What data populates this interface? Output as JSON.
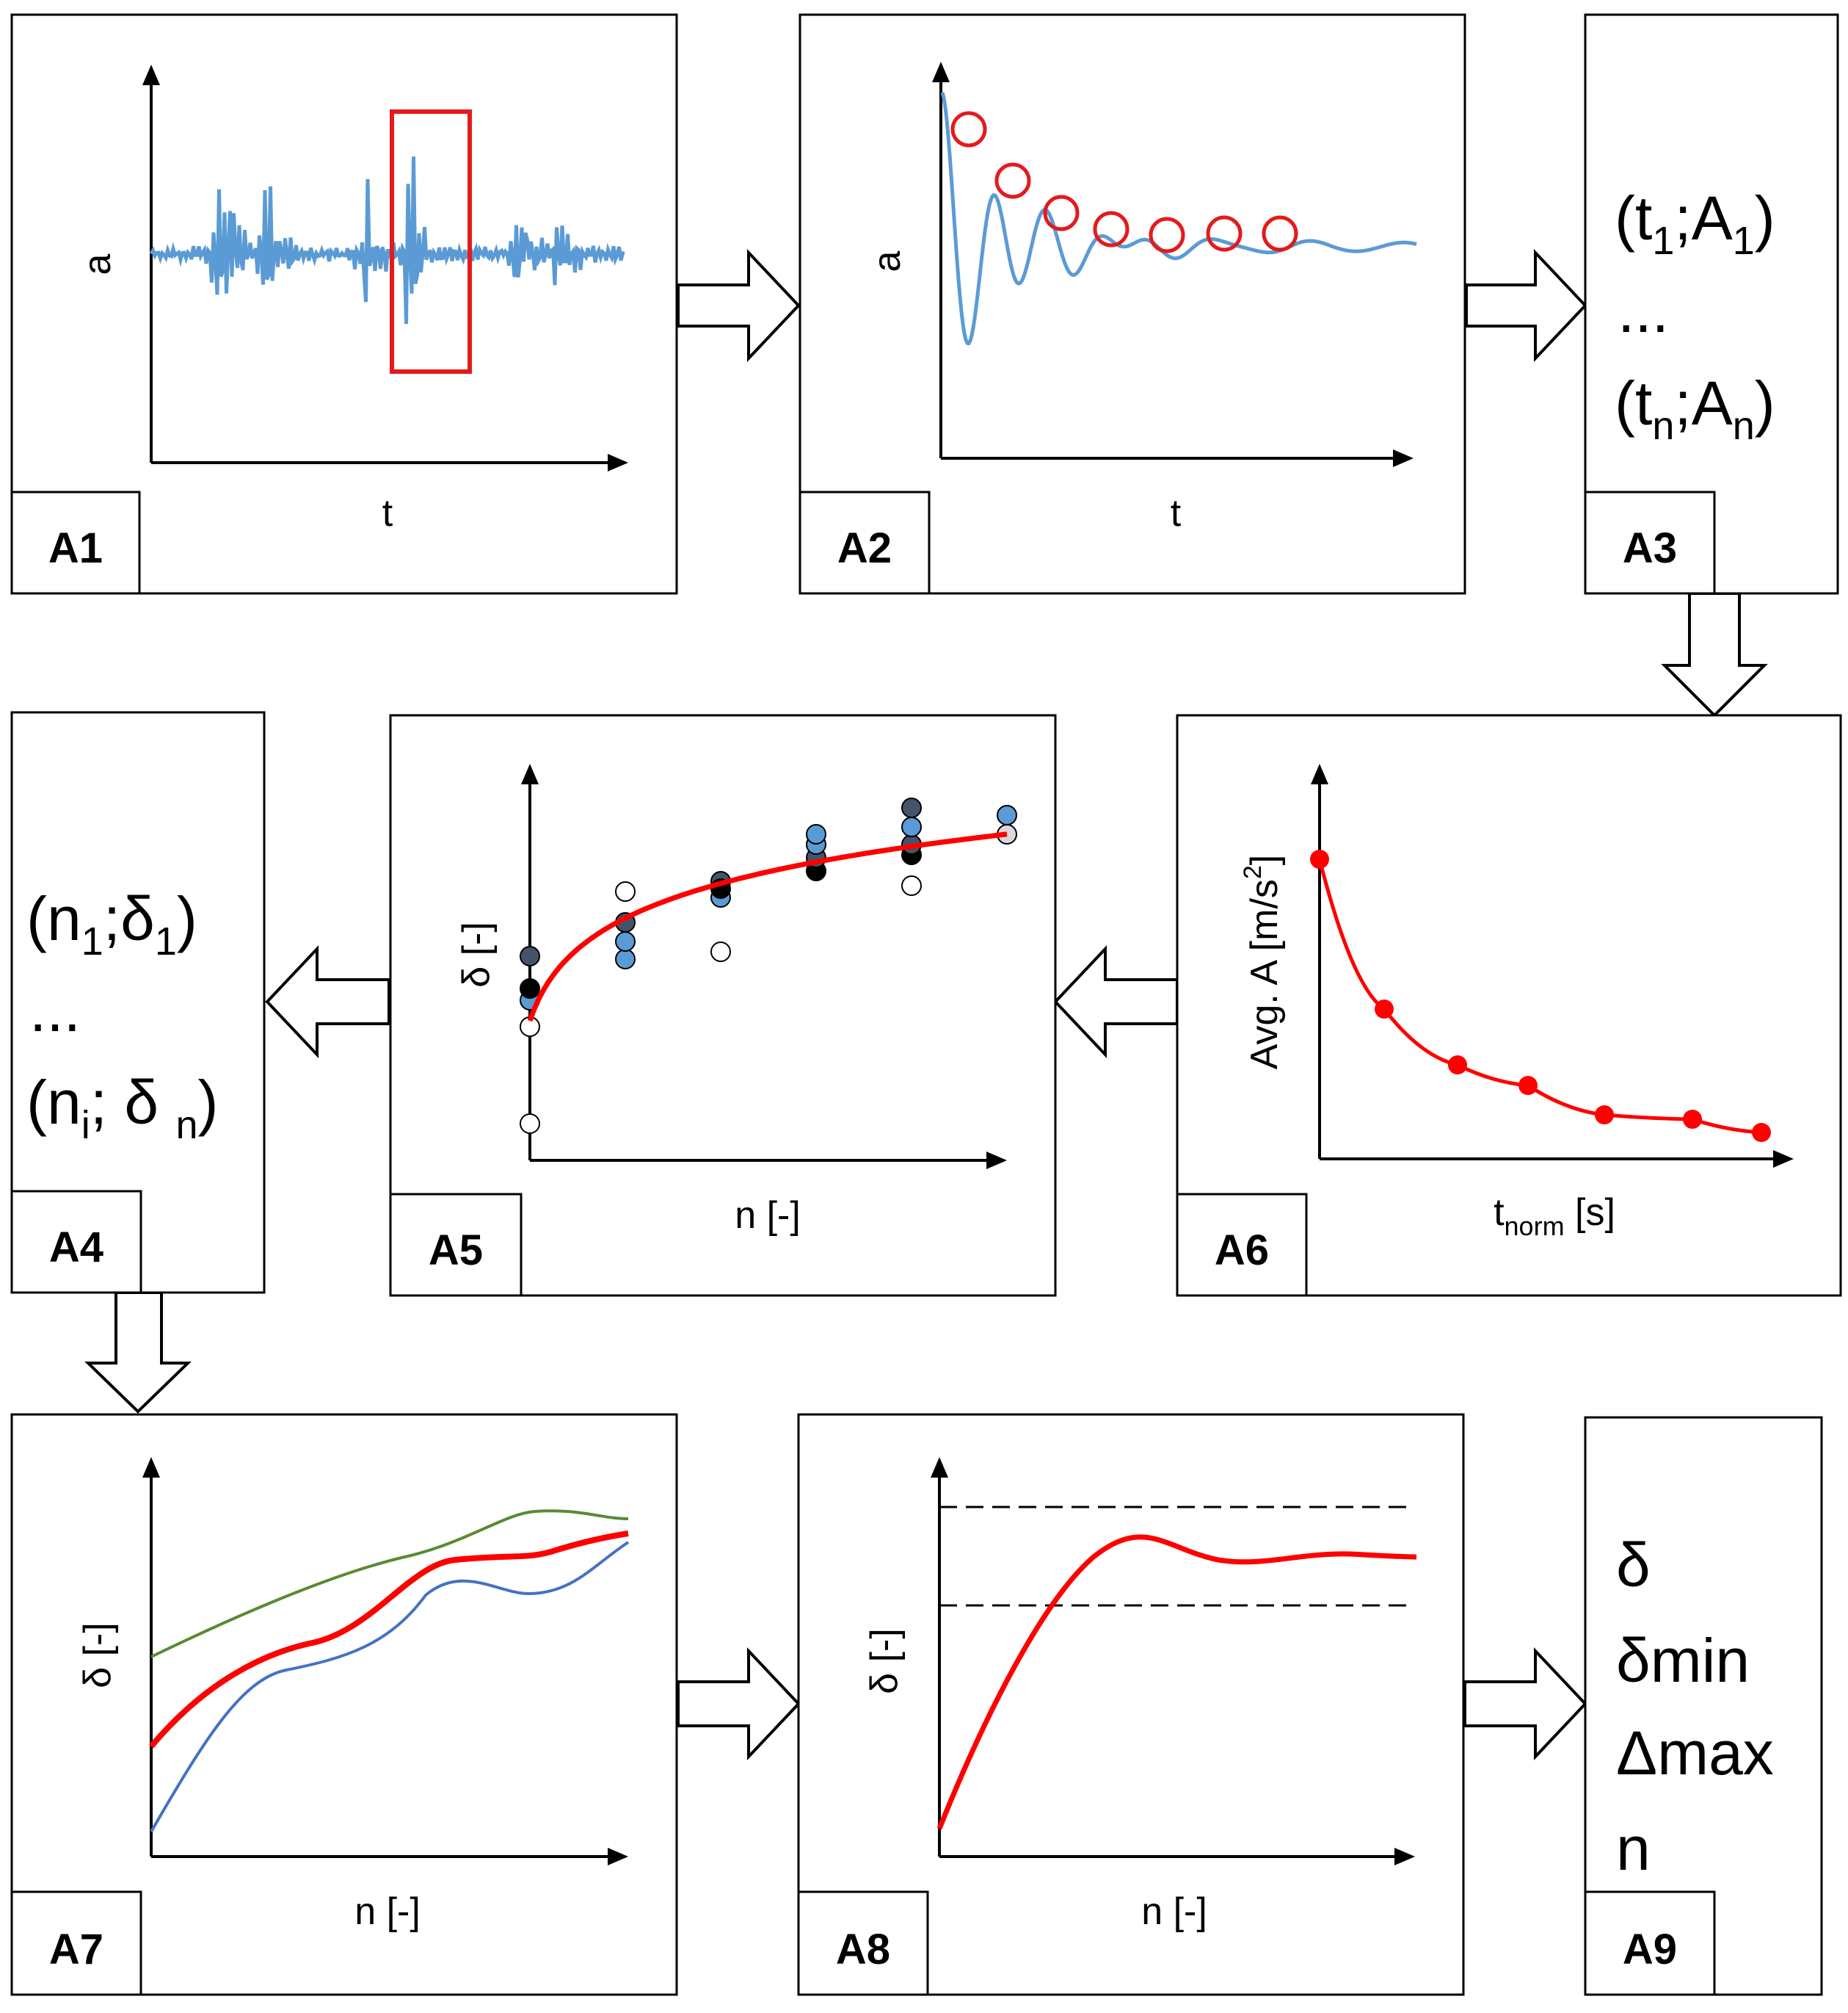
{
  "colors": {
    "signal": "#5b9bd5",
    "highlight": "#e41a1c",
    "fit": "#ff0000",
    "upper": "#5a8a32",
    "lower": "#4472c4",
    "dark_points": "#44546a",
    "black": "#000000"
  },
  "panels": {
    "a1": {
      "label": "A1",
      "xlabel": "t",
      "ylabel": "a"
    },
    "a2": {
      "label": "A2",
      "xlabel": "t",
      "ylabel": "a"
    },
    "a3": {
      "label": "A3",
      "line1": {
        "open": "(t",
        "s1": "1",
        "mid": ";A",
        "s2": "1",
        "close": ")"
      },
      "ellipsis": "...",
      "line2": {
        "open": "(t",
        "s1": "n",
        "mid": ";A",
        "s2": "n",
        "close": ")"
      }
    },
    "a4": {
      "label": "A4",
      "line1": {
        "open": "(n",
        "s1": "1",
        "mid": ";δ",
        "s2": "1",
        "close": ")"
      },
      "ellipsis": "...",
      "line2": {
        "open": "(n",
        "s1": "i",
        "mid": "; δ ",
        "s2": "n",
        "close": ")"
      }
    },
    "a5": {
      "label": "A5",
      "xlabel": "n [-]",
      "ylabel": "δ [-]"
    },
    "a6": {
      "label": "A6",
      "xlabel_main": "t",
      "xlabel_sub": "norm",
      "xlabel_unit": " [s]",
      "ylabel_main": "Avg. A [m/s",
      "ylabel_sup": "2",
      "ylabel_end": "]"
    },
    "a7": {
      "label": "A7",
      "xlabel": "n [-]",
      "ylabel": "δ [-]"
    },
    "a8": {
      "label": "A8",
      "xlabel": "n [-]",
      "ylabel": "δ [-]"
    },
    "a9": {
      "label": "A9",
      "lines": [
        "δ",
        "δmin",
        "Δmax",
        "n"
      ]
    }
  }
}
